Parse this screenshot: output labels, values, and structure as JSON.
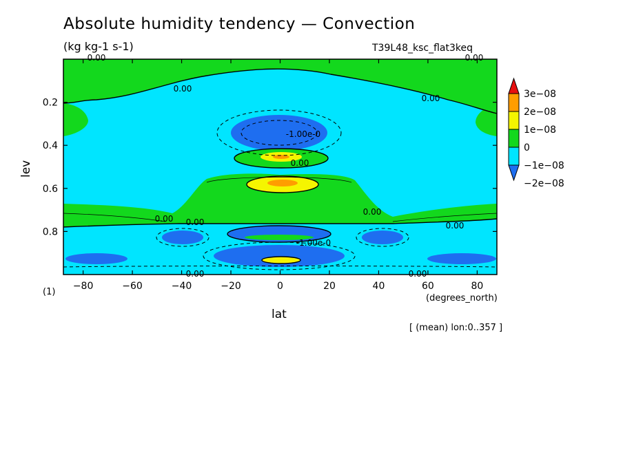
{
  "chart_data": {
    "type": "heatmap",
    "title": "Absolute humidity tendency — Convection",
    "subtitle": "(kg kg-1 s-1)",
    "run_label": "T39L48_ksc_flat3keq",
    "xlabel": "lat",
    "x_units": "(degrees_north)",
    "ylabel": "lev",
    "figure_number": "(1)",
    "footnote": "[ (mean) lon:0..357 ]",
    "xlim": [
      -88,
      88
    ],
    "ylim": [
      0.0,
      1.0
    ],
    "y_inverted": true,
    "x_ticks": [
      -80,
      -60,
      -40,
      -20,
      0,
      20,
      40,
      60,
      80
    ],
    "x_tick_labels": [
      "−80",
      "−60",
      "−40",
      "−20",
      "0",
      "20",
      "40",
      "60",
      "80"
    ],
    "y_ticks": [
      0.2,
      0.4,
      0.6,
      0.8
    ],
    "y_tick_labels": [
      "0.2",
      "0.4",
      "0.6",
      "0.8"
    ],
    "colorbar": {
      "levels": [
        -2e-08,
        -1e-08,
        0,
        1e-08,
        2e-08,
        3e-08
      ],
      "labels": [
        "−2e−08",
        "−1e−08",
        "0",
        "1e−08",
        "2e−08",
        "3e−08"
      ],
      "colors": [
        "#1e6ef0",
        "#00e5ff",
        "#13d81d",
        "#f5f500",
        "#ff9d00",
        "#e80f0f"
      ],
      "extend": "both"
    },
    "contour_labels": [
      "0.00",
      "0.00",
      "0.00",
      "0.00",
      "0.00",
      "0.00",
      "0.00",
      "0.00",
      "0.00",
      "0.00",
      "-1.00e-0",
      "-1.00e-0",
      "0.00"
    ],
    "regions": [
      {
        "fill": "#13d81d",
        "desc": "upper troposphere, lev 0.0–0.15, all latitudes"
      },
      {
        "fill": "#00e5ff",
        "desc": "lev 0.15–0.65, broad cyan band"
      },
      {
        "fill": "#1e6ef0",
        "desc": "lev 0.28–0.4, lat −22..22, drying maximum"
      },
      {
        "fill": "#13d81d",
        "desc": "lev 0.42–0.5, lat −20..20"
      },
      {
        "fill": "#f5f500",
        "desc": "lev 0.55–0.6, lat −10..12, moistening"
      },
      {
        "fill": "#13d81d",
        "desc": "lev 0.55–0.78, lat −40..40 and polar lower levels"
      },
      {
        "fill": "#1e6ef0",
        "desc": "lev 0.77–0.95, lat −30..30, drying"
      },
      {
        "fill": "#f5f500",
        "desc": "lev 0.93, lat −8..8"
      }
    ]
  }
}
